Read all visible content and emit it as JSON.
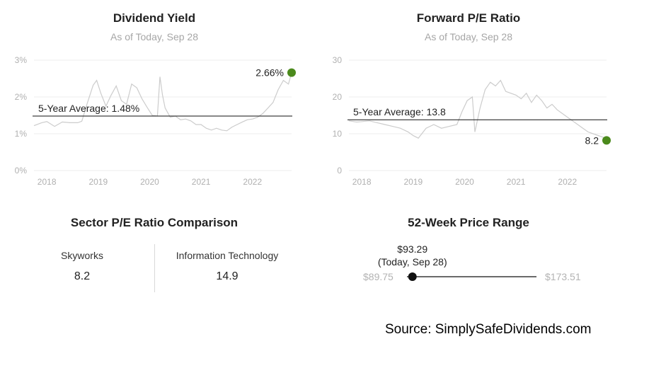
{
  "chart_data": [
    {
      "type": "line",
      "title": "Dividend Yield",
      "subtitle": "As of Today, Sep 28",
      "y_unit": "%",
      "ylim": [
        0,
        3
      ],
      "y_ticks": [
        "0%",
        "1%",
        "2%",
        "3%"
      ],
      "x_ticks": [
        "2018",
        "2019",
        "2020",
        "2021",
        "2022"
      ],
      "xlim": [
        2017.75,
        2022.76
      ],
      "grid": "horizontal",
      "color": "#cccccc",
      "series": [
        {
          "x": [
            2017.75,
            2017.9,
            2018.0,
            2018.15,
            2018.3,
            2018.45,
            2018.6,
            2018.68,
            2018.78,
            2018.9,
            2018.97,
            2019.05,
            2019.15,
            2019.25,
            2019.35,
            2019.45,
            2019.55,
            2019.65,
            2019.75,
            2019.85,
            2019.95,
            2020.05,
            2020.15,
            2020.2,
            2020.25,
            2020.3,
            2020.4,
            2020.5,
            2020.6,
            2020.7,
            2020.8,
            2020.9,
            2021.0,
            2021.1,
            2021.2,
            2021.3,
            2021.4,
            2021.5,
            2021.6,
            2021.7,
            2021.8,
            2021.9,
            2022.0,
            2022.1,
            2022.2,
            2022.3,
            2022.4,
            2022.5,
            2022.6,
            2022.7,
            2022.76
          ],
          "y": [
            1.22,
            1.3,
            1.33,
            1.2,
            1.32,
            1.3,
            1.3,
            1.34,
            1.8,
            2.32,
            2.45,
            2.1,
            1.75,
            2.05,
            2.3,
            1.9,
            1.8,
            2.35,
            2.25,
            1.95,
            1.72,
            1.5,
            1.48,
            2.55,
            2.05,
            1.7,
            1.45,
            1.48,
            1.38,
            1.4,
            1.35,
            1.25,
            1.25,
            1.15,
            1.1,
            1.15,
            1.1,
            1.08,
            1.18,
            1.25,
            1.32,
            1.38,
            1.4,
            1.45,
            1.55,
            1.7,
            1.85,
            2.2,
            2.45,
            2.35,
            2.66
          ]
        }
      ],
      "average": {
        "value": 1.48,
        "label": "5-Year Average: 1.48%"
      },
      "current": {
        "value": 2.66,
        "label": "2.66%"
      },
      "current_color": "#4b8a1c"
    },
    {
      "type": "line",
      "title": "Forward P/E Ratio",
      "subtitle": "As of Today, Sep 28",
      "ylim": [
        0,
        30
      ],
      "y_ticks": [
        "0",
        "10",
        "20",
        "30"
      ],
      "x_ticks": [
        "2018",
        "2019",
        "2020",
        "2021",
        "2022"
      ],
      "xlim": [
        2017.75,
        2022.76
      ],
      "grid": "horizontal",
      "color": "#cccccc",
      "series": [
        {
          "x": [
            2017.75,
            2017.9,
            2018.0,
            2018.15,
            2018.3,
            2018.45,
            2018.6,
            2018.75,
            2018.9,
            2019.0,
            2019.1,
            2019.25,
            2019.4,
            2019.55,
            2019.7,
            2019.85,
            2019.95,
            2020.05,
            2020.15,
            2020.2,
            2020.3,
            2020.4,
            2020.5,
            2020.6,
            2020.7,
            2020.8,
            2020.9,
            2021.0,
            2021.1,
            2021.2,
            2021.3,
            2021.4,
            2021.5,
            2021.6,
            2021.7,
            2021.8,
            2021.9,
            2022.0,
            2022.1,
            2022.2,
            2022.3,
            2022.4,
            2022.5,
            2022.6,
            2022.7,
            2022.76
          ],
          "y": [
            13.5,
            13.2,
            13.3,
            13.5,
            13.0,
            12.5,
            12.0,
            11.5,
            10.5,
            9.5,
            8.8,
            11.5,
            12.5,
            11.5,
            12.0,
            12.5,
            16.0,
            19.0,
            20.0,
            10.5,
            17.0,
            22.0,
            24.0,
            23.0,
            24.5,
            21.5,
            21.0,
            20.5,
            19.5,
            21.0,
            18.5,
            20.5,
            19.0,
            17.0,
            18.0,
            16.5,
            15.5,
            14.5,
            13.5,
            12.5,
            11.5,
            10.5,
            10.0,
            9.5,
            9.0,
            8.2
          ]
        }
      ],
      "average": {
        "value": 13.8,
        "label": "5-Year Average: 13.8"
      },
      "current": {
        "value": 8.2,
        "label": "8.2"
      },
      "current_color": "#4b8a1c"
    },
    {
      "type": "table",
      "title": "Sector P/E Ratio Comparison",
      "columns": [
        "Skyworks",
        "Information Technology"
      ],
      "values": [
        "8.2",
        "14.9"
      ]
    },
    {
      "type": "range",
      "title": "52-Week Price Range",
      "low": 89.75,
      "high": 173.51,
      "current": 93.29,
      "low_label": "$89.75",
      "high_label": "$173.51",
      "current_label": "$93.29",
      "current_note": "(Today, Sep 28)"
    }
  ],
  "source": "Source: SimplySafeDividends.com"
}
